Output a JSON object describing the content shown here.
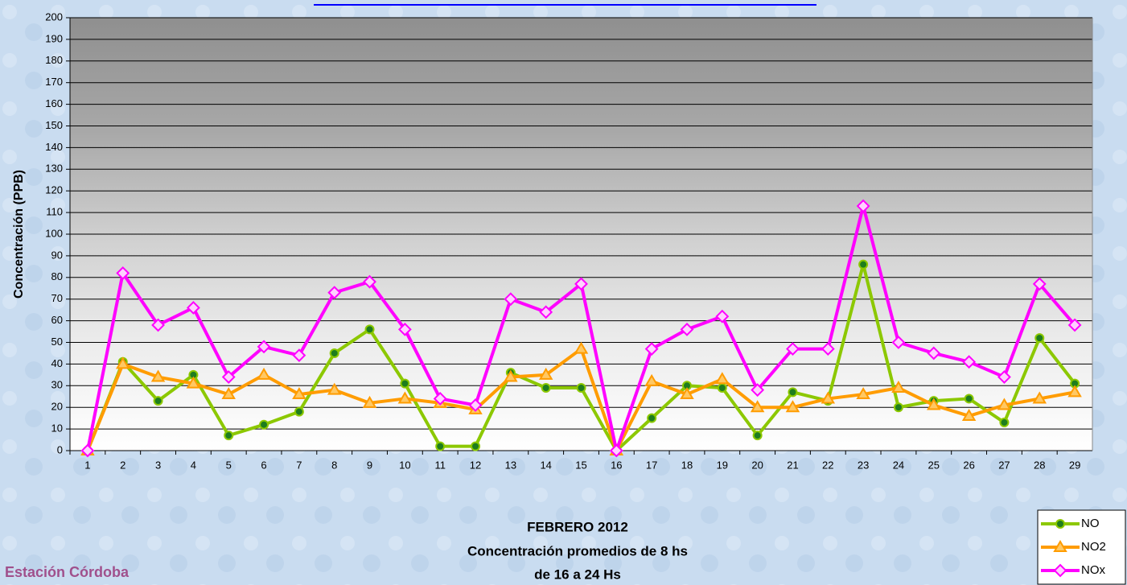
{
  "chart_data": {
    "type": "line",
    "title": "FEBRERO 2012",
    "subtitle": [
      "Concentración promedios de 8 hs",
      "de 16 a 24 Hs"
    ],
    "annotation": "Estación Córdoba",
    "y_label": "Concentración  (PPB)",
    "categories": [
      "1",
      "2",
      "3",
      "4",
      "5",
      "6",
      "7",
      "8",
      "9",
      "10",
      "11",
      "12",
      "13",
      "14",
      "15",
      "16",
      "17",
      "18",
      "19",
      "20",
      "21",
      "22",
      "23",
      "24",
      "25",
      "26",
      "27",
      "28",
      "29"
    ],
    "series": [
      {
        "name": "NO",
        "color": "#8cc800",
        "marker": "circle",
        "values": [
          0,
          41,
          23,
          35,
          7,
          12,
          18,
          45,
          56,
          31,
          2,
          2,
          36,
          29,
          29,
          0,
          15,
          30,
          29,
          7,
          27,
          23,
          86,
          20,
          23,
          24,
          13,
          52,
          31
        ]
      },
      {
        "name": "NO2",
        "color": "#ff9c00",
        "marker": "triangle",
        "values": [
          0,
          40,
          34,
          31,
          26,
          35,
          26,
          28,
          22,
          24,
          22,
          19,
          34,
          35,
          47,
          0,
          32,
          26,
          33,
          20,
          20,
          24,
          26,
          29,
          21,
          16,
          21,
          24,
          27
        ]
      },
      {
        "name": "NOx",
        "color": "#ff00ff",
        "marker": "diamond",
        "values": [
          0,
          82,
          58,
          66,
          34,
          48,
          44,
          73,
          78,
          56,
          24,
          21,
          70,
          64,
          77,
          0,
          47,
          56,
          62,
          28,
          47,
          47,
          113,
          50,
          45,
          41,
          34,
          77,
          58
        ]
      }
    ],
    "ylim": [
      0,
      200
    ],
    "yticks": [
      0,
      10,
      20,
      30,
      40,
      50,
      60,
      70,
      80,
      90,
      100,
      110,
      120,
      130,
      140,
      150,
      160,
      170,
      180,
      190,
      200
    ],
    "grid": true,
    "legend": "lower right"
  }
}
